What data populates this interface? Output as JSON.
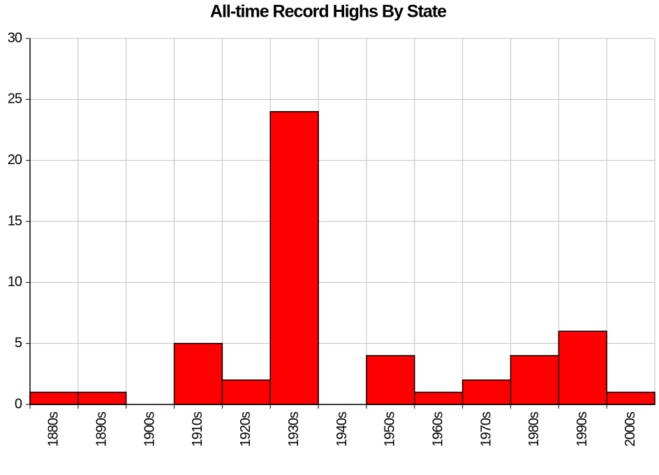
{
  "chart_data": {
    "type": "bar",
    "title": "All-time Record Highs By State",
    "categories": [
      "1880s",
      "1890s",
      "1900s",
      "1910s",
      "1920s",
      "1930s",
      "1940s",
      "1950s",
      "1960s",
      "1970s",
      "1980s",
      "1990s",
      "2000s"
    ],
    "values": [
      1,
      1,
      0,
      5,
      2,
      24,
      0,
      4,
      1,
      2,
      4,
      6,
      1
    ],
    "color": "#ff0000",
    "ylim": [
      0,
      30
    ],
    "yticks": [
      0,
      5,
      10,
      15,
      20,
      25,
      30
    ],
    "grid": true
  }
}
